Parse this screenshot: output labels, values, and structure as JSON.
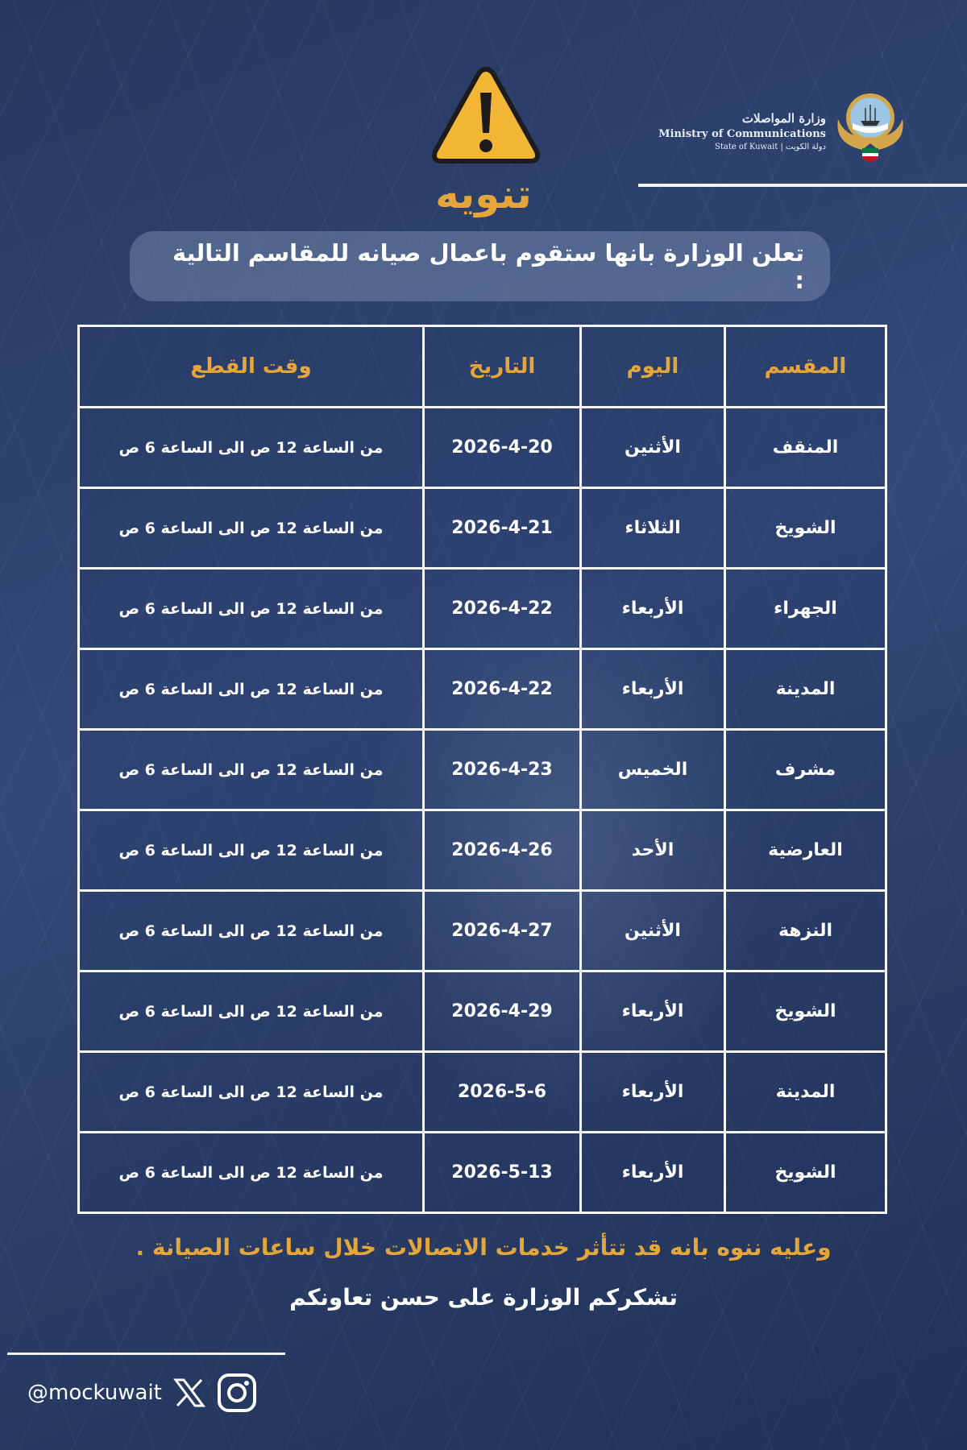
{
  "header": {
    "ministry_ar": "وزارة المواصلات",
    "ministry_en": "Ministry of Communications",
    "state": "State of Kuwait  |  دولة الكويت",
    "title": "تنويه",
    "announcement": "تعلن الوزارة بانها ستقوم باعمال صيانه  للمقاسم التالية :"
  },
  "colors": {
    "accent": "#e4a63b",
    "background": "#2e4372"
  },
  "table": {
    "headers": [
      "المقسم",
      "اليوم",
      "التاريخ",
      "وقت القطع"
    ],
    "rows": [
      [
        "المنقف",
        "الأثنين",
        "2026-4-20",
        "من الساعة 12 ص الى الساعة 6 ص"
      ],
      [
        "الشويخ",
        "الثلاثاء",
        "2026-4-21",
        "من الساعة 12 ص الى الساعة 6 ص"
      ],
      [
        "الجهراء",
        "الأربعاء",
        "2026-4-22",
        "من الساعة 12 ص الى الساعة 6 ص"
      ],
      [
        "المدينة",
        "الأربعاء",
        "2026-4-22",
        "من الساعة 12 ص الى الساعة 6 ص"
      ],
      [
        "مشرف",
        "الخميس",
        "2026-4-23",
        "من الساعة 12 ص الى الساعة 6 ص"
      ],
      [
        "العارضية",
        "الأحد",
        "2026-4-26",
        "من الساعة 12 ص الى الساعة 6 ص"
      ],
      [
        "النزهة",
        "الأثنين",
        "2026-4-27",
        "من الساعة 12 ص الى الساعة 6 ص"
      ],
      [
        "الشويخ",
        "الأربعاء",
        "2026-4-29",
        "من الساعة 12 ص الى الساعة 6 ص"
      ],
      [
        "المدينة",
        "الأربعاء",
        "2026-5-6",
        "من الساعة 12 ص الى الساعة 6 ص"
      ],
      [
        "الشويخ",
        "الأربعاء",
        "2026-5-13",
        "من الساعة 12 ص الى الساعة 6 ص"
      ]
    ]
  },
  "footer": {
    "note": "وعليه ننوه بانه قد تتأثر خدمات الاتصالات خلال ساعات الصيانة .",
    "thanks": "تشكركم الوزارة على حسن تعاونكم",
    "handle": "@mockuwait",
    "icons": [
      "x-icon",
      "instagram-icon"
    ]
  }
}
